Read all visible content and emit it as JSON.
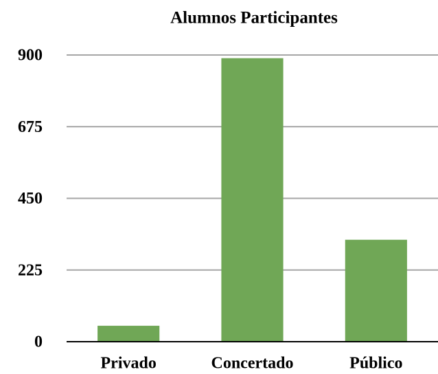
{
  "chart_data": {
    "type": "bar",
    "title": "Alumnos Participantes",
    "categories": [
      "Privado",
      "Concertado",
      "Público"
    ],
    "values": [
      50,
      890,
      320
    ],
    "color": "#70a756",
    "ylim": [
      0,
      900
    ],
    "yticks": [
      0,
      225,
      450,
      675,
      900
    ],
    "grid": true
  }
}
